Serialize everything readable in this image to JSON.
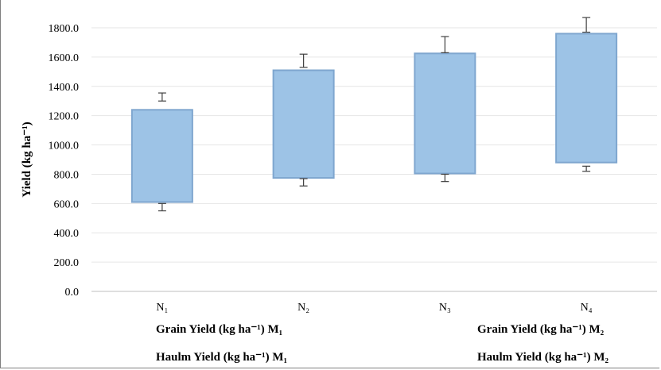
{
  "chart_data": {
    "type": "box",
    "ylabel": "Yield (kg ha⁻¹)",
    "ylim": [
      0,
      1800
    ],
    "yticks": [
      "0.0",
      "200.0",
      "400.0",
      "600.0",
      "800.0",
      "1000.0",
      "1200.0",
      "1400.0",
      "1600.0",
      "1800.0"
    ],
    "categories": [
      "N₁",
      "N₂",
      "N₃",
      "N₄"
    ],
    "boxes": [
      {
        "low": 610,
        "high": 1240,
        "low_err_min": 550,
        "low_err_max": 600,
        "high_err_min": 1300,
        "high_err_max": 1355
      },
      {
        "low": 775,
        "high": 1510,
        "low_err_min": 720,
        "low_err_max": 770,
        "high_err_min": 1530,
        "high_err_max": 1620
      },
      {
        "low": 805,
        "high": 1625,
        "low_err_min": 750,
        "low_err_max": 800,
        "high_err_min": 1630,
        "high_err_max": 1740
      },
      {
        "low": 880,
        "high": 1760,
        "low_err_min": 820,
        "low_err_max": 855,
        "high_err_min": 1770,
        "high_err_max": 1870
      }
    ],
    "legend": [
      {
        "text": "Grain Yield (kg ha⁻¹) M₁",
        "position": "bottom-left"
      },
      {
        "text": "Grain Yield (kg ha⁻¹) M₂",
        "position": "bottom-right"
      },
      {
        "text": "Haulm Yield (kg ha⁻¹) M₁",
        "position": "bottom-left"
      },
      {
        "text": "Haulm Yield (kg ha⁻¹) M₂",
        "position": "bottom-right"
      }
    ],
    "colors": {
      "box_fill": "#9dc3e6",
      "box_stroke": "#7fa6cf"
    }
  }
}
